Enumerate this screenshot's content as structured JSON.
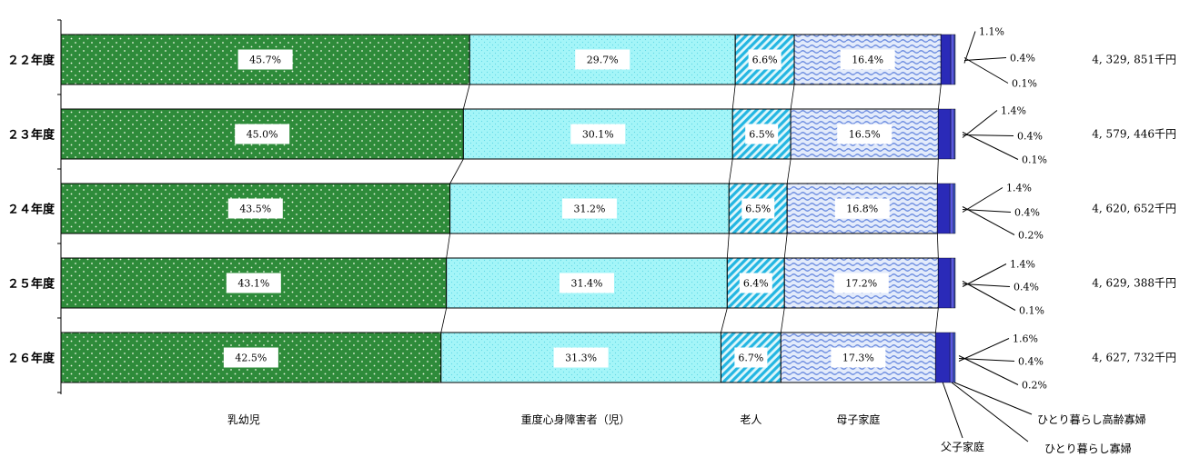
{
  "chart_data": {
    "type": "bar",
    "orientation": "horizontal",
    "stacked": true,
    "percent": true,
    "categories": [
      "２２年度",
      "２３年度",
      "２４年度",
      "２５年度",
      "２６年度"
    ],
    "series": [
      {
        "name": "乳幼児",
        "values": [
          45.7,
          45.0,
          43.5,
          43.1,
          42.5
        ],
        "labels": [
          "45.7%",
          "45.0%",
          "43.5%",
          "43.1%",
          "42.5%"
        ],
        "color": "#2e8b3a"
      },
      {
        "name": "重度心身障害者（児）",
        "values": [
          29.7,
          30.1,
          31.2,
          31.4,
          31.3
        ],
        "labels": [
          "29.7%",
          "30.1%",
          "31.2%",
          "31.4%",
          "31.3%"
        ],
        "color": "#99f3f7"
      },
      {
        "name": "老人",
        "values": [
          6.6,
          6.5,
          6.5,
          6.4,
          6.7
        ],
        "labels": [
          "6.6%",
          "6.5%",
          "6.5%",
          "6.4%",
          "6.7%"
        ],
        "color": "#29bde6"
      },
      {
        "name": "母子家庭",
        "values": [
          16.4,
          16.5,
          16.8,
          17.2,
          17.3
        ],
        "labels": [
          "16.4%",
          "16.5%",
          "16.8%",
          "17.2%",
          "17.3%"
        ],
        "color": "#9fb4ee"
      },
      {
        "name": "父子家庭",
        "values": [
          1.1,
          1.4,
          1.4,
          1.4,
          1.6
        ],
        "labels": [
          "1.1%",
          "1.4%",
          "1.4%",
          "1.4%",
          "1.6%"
        ],
        "color": "#2a2ab8"
      },
      {
        "name": "ひとり暮らし寡婦",
        "values": [
          0.4,
          0.4,
          0.4,
          0.4,
          0.4
        ],
        "labels": [
          "0.4%",
          "0.4%",
          "0.4%",
          "0.4%",
          "0.4%"
        ],
        "color": "#5a5ae0"
      },
      {
        "name": "ひとり暮らし高齢寡婦",
        "values": [
          0.1,
          0.1,
          0.2,
          0.1,
          0.2
        ],
        "labels": [
          "0.1%",
          "0.1%",
          "0.2%",
          "0.1%",
          "0.2%"
        ],
        "color": "#4060d0"
      }
    ],
    "totals": [
      "4, 329, 851千円",
      "4, 579, 446千円",
      "4, 620, 652千円",
      "4, 629, 388千円",
      "4, 627, 732千円"
    ],
    "xlim": [
      0,
      100
    ],
    "grid": false,
    "legend": "bottom"
  }
}
